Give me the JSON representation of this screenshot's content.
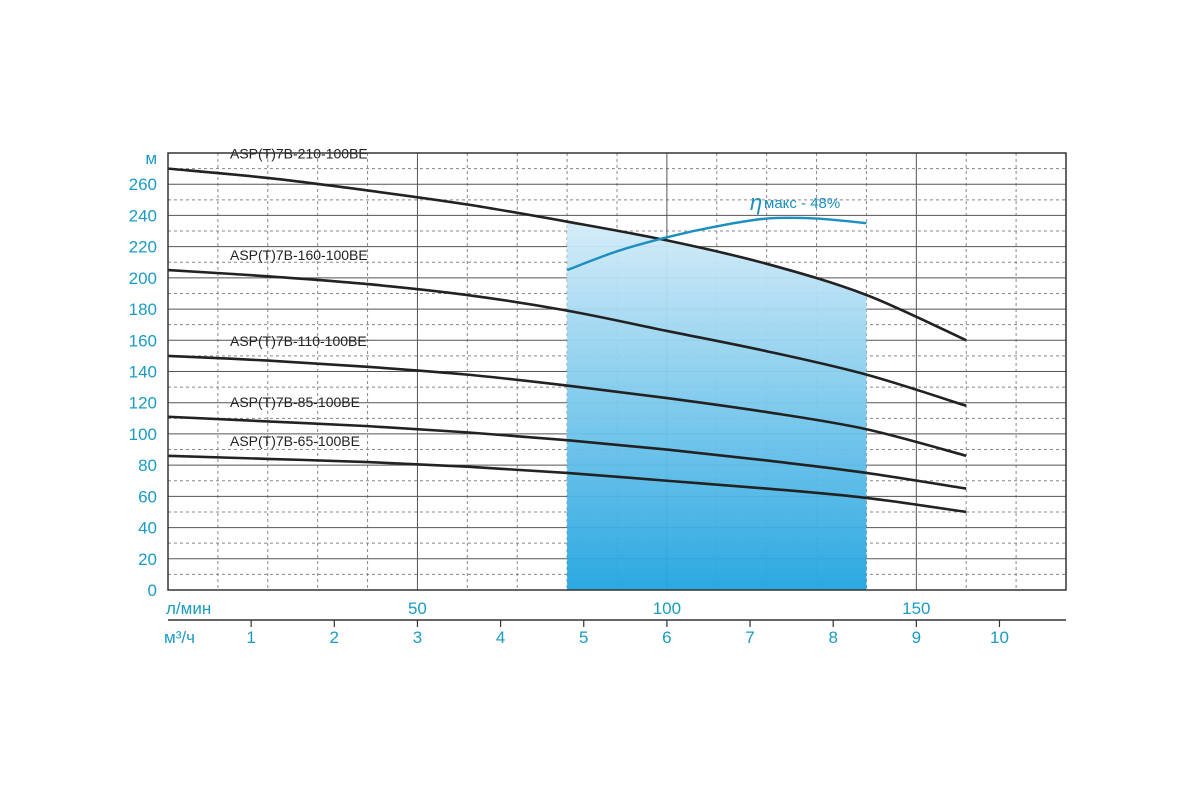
{
  "chart_data": {
    "type": "line",
    "y_unit": "м",
    "x_unit": "л/мин",
    "x2_unit": "м³/ч",
    "xlim": [
      0,
      180
    ],
    "xticks": [
      50,
      100,
      150
    ],
    "x_minor_ticks": [
      10,
      20,
      30,
      40,
      60,
      70,
      80,
      90,
      110,
      120,
      130,
      140,
      160,
      170
    ],
    "x2lim": [
      0,
      10.8
    ],
    "x2ticks": [
      1,
      2,
      3,
      4,
      5,
      6,
      7,
      8,
      9,
      10
    ],
    "ylim": [
      0,
      280
    ],
    "yticks": [
      0,
      20,
      40,
      60,
      80,
      100,
      120,
      140,
      160,
      180,
      200,
      220,
      240,
      260
    ],
    "y_minor_ticks": [
      10,
      30,
      50,
      70,
      90,
      110,
      130,
      150,
      170,
      190,
      210,
      230,
      250,
      270
    ],
    "grid": true,
    "working_range": [
      80,
      140
    ],
    "x": [
      0,
      20,
      40,
      60,
      80,
      100,
      120,
      140,
      160
    ],
    "series": [
      {
        "name": "ASP(T)7B-210-100BE",
        "color": "#222222",
        "values": [
          270,
          264,
          256,
          247,
          236,
          224,
          209,
          189,
          160
        ]
      },
      {
        "name": "ASP(T)7B-160-100BE",
        "color": "#222222",
        "values": [
          205,
          201,
          196,
          189,
          179,
          166,
          153,
          138,
          118
        ]
      },
      {
        "name": "ASP(T)7B-110-100BE",
        "color": "#222222",
        "values": [
          150,
          147,
          143,
          138,
          131,
          123,
          114,
          103,
          86
        ]
      },
      {
        "name": "ASP(T)7B-85-100BE",
        "color": "#222222",
        "values": [
          111,
          108,
          105,
          101,
          96,
          90,
          83,
          75,
          65
        ]
      },
      {
        "name": "ASP(T)7B-65-100BE",
        "color": "#222222",
        "values": [
          86,
          84,
          82,
          79,
          75,
          70,
          65,
          59,
          50
        ]
      }
    ],
    "efficiency": {
      "symbol": "η",
      "text": "макс - 48%",
      "color": "#1a8fc0",
      "x": [
        80,
        90,
        100,
        110,
        120,
        130,
        140
      ],
      "values": [
        205,
        217,
        226,
        233,
        238,
        238,
        235
      ]
    }
  }
}
